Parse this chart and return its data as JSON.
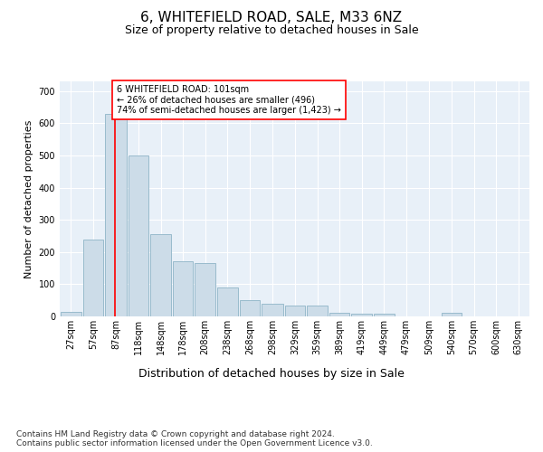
{
  "title": "6, WHITEFIELD ROAD, SALE, M33 6NZ",
  "subtitle": "Size of property relative to detached houses in Sale",
  "xlabel": "Distribution of detached houses by size in Sale",
  "ylabel": "Number of detached properties",
  "bar_color": "#ccdce8",
  "bar_edgecolor": "#99bbcc",
  "bar_linewidth": 0.7,
  "vline_x": 101,
  "vline_color": "red",
  "vline_linewidth": 1.2,
  "annotation_text": "6 WHITEFIELD ROAD: 101sqm\n← 26% of detached houses are smaller (496)\n74% of semi-detached houses are larger (1,423) →",
  "annotation_box_edgecolor": "red",
  "annotation_box_facecolor": "white",
  "bins": [
    27,
    57,
    87,
    118,
    148,
    178,
    208,
    238,
    268,
    298,
    329,
    359,
    389,
    419,
    449,
    479,
    509,
    540,
    570,
    600,
    630
  ],
  "bin_labels": [
    "27sqm",
    "57sqm",
    "87sqm",
    "118sqm",
    "148sqm",
    "178sqm",
    "208sqm",
    "238sqm",
    "268sqm",
    "298sqm",
    "329sqm",
    "359sqm",
    "389sqm",
    "419sqm",
    "449sqm",
    "479sqm",
    "509sqm",
    "540sqm",
    "570sqm",
    "600sqm",
    "630sqm"
  ],
  "values": [
    15,
    240,
    630,
    500,
    255,
    170,
    165,
    90,
    50,
    40,
    35,
    35,
    10,
    8,
    8,
    0,
    0,
    10,
    0,
    0,
    0
  ],
  "ylim": [
    0,
    730
  ],
  "yticks": [
    0,
    100,
    200,
    300,
    400,
    500,
    600,
    700
  ],
  "axes_background": "#e8f0f8",
  "footer": "Contains HM Land Registry data © Crown copyright and database right 2024.\nContains public sector information licensed under the Open Government Licence v3.0.",
  "title_fontsize": 11,
  "subtitle_fontsize": 9,
  "xlabel_fontsize": 9,
  "ylabel_fontsize": 8,
  "tick_fontsize": 7,
  "footer_fontsize": 6.5
}
